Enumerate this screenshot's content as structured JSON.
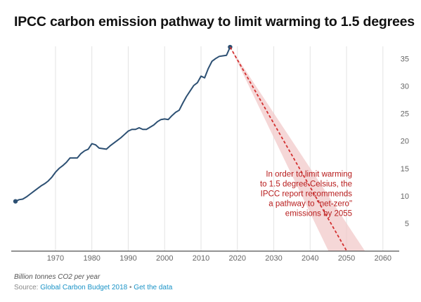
{
  "title": "IPCC carbon emission pathway to limit warming to 1.5 degrees",
  "footer": {
    "unit_note": "Billion tonnes CO2 per year",
    "source_prefix": "Source: ",
    "source_name": "Global Carbon Budget 2018",
    "separator": " • ",
    "data_link": "Get the data"
  },
  "colors": {
    "historic_line": "#2d5073",
    "pathway_line": "#d32f2f",
    "pathway_band": "#f2c9c9",
    "annotation_text": "#b71c1c",
    "link": "#1a93c7"
  },
  "chart_data": {
    "type": "line",
    "title": "IPCC carbon emission pathway to limit warming to 1.5 degrees",
    "xlabel": "",
    "ylabel": "Billion tonnes CO2 per year",
    "xlim": [
      1959,
      2061
    ],
    "ylim": [
      0,
      38
    ],
    "x_ticks": [
      1970,
      1980,
      1990,
      2000,
      2010,
      2020,
      2030,
      2040,
      2050,
      2060
    ],
    "y_ticks": [
      5,
      10,
      15,
      20,
      25,
      30,
      35
    ],
    "grid": "vertical",
    "y_axis_position": "right",
    "series": [
      {
        "style": "solid",
        "x": [
          1959,
          1960,
          1961,
          1962,
          1963,
          1964,
          1965,
          1966,
          1967,
          1968,
          1969,
          1970,
          1971,
          1972,
          1973,
          1974,
          1975,
          1976,
          1977,
          1978,
          1979,
          1980,
          1981,
          1982,
          1983,
          1984,
          1985,
          1986,
          1987,
          1988,
          1989,
          1990,
          1991,
          1992,
          1993,
          1994,
          1995,
          1996,
          1997,
          1998,
          1999,
          2000,
          2001,
          2002,
          2003,
          2004,
          2005,
          2006,
          2007,
          2008,
          2009,
          2010,
          2011,
          2012,
          2013,
          2014,
          2015,
          2016,
          2017,
          2018
        ],
        "y": [
          9.0,
          9.3,
          9.4,
          9.8,
          10.3,
          10.8,
          11.3,
          11.8,
          12.2,
          12.7,
          13.4,
          14.3,
          15.0,
          15.5,
          16.1,
          16.9,
          16.9,
          16.9,
          17.7,
          18.2,
          18.5,
          19.5,
          19.3,
          18.7,
          18.6,
          18.5,
          19.1,
          19.6,
          20.1,
          20.6,
          21.2,
          21.8,
          22.1,
          22.1,
          22.4,
          22.1,
          22.1,
          22.5,
          22.9,
          23.5,
          23.9,
          24.0,
          23.9,
          24.6,
          25.2,
          25.6,
          26.9,
          28.1,
          29.1,
          30.1,
          30.6,
          31.8,
          31.5,
          33.2,
          34.5,
          35.0,
          35.4,
          35.5,
          35.6,
          37.1
        ],
        "end_marker_years": [
          1959,
          2018
        ]
      },
      {
        "style": "dashed",
        "x": [
          2018,
          2050
        ],
        "y": [
          37.1,
          0
        ]
      }
    ],
    "uncertainty_band": {
      "x": [
        2018,
        2045,
        2055
      ],
      "upper_end_year": 2055,
      "lower_end_year": 2045,
      "start_value": 37.1,
      "end_value": 0
    },
    "annotation": {
      "lines": [
        "In order to limit warming",
        "to 1.5 degree Celsius, the",
        "IPCC report recommends",
        "a pathway to \"net-zero\"",
        "emissions by 2055"
      ],
      "anchor_year": 2033,
      "anchor_value": 13.5
    }
  }
}
